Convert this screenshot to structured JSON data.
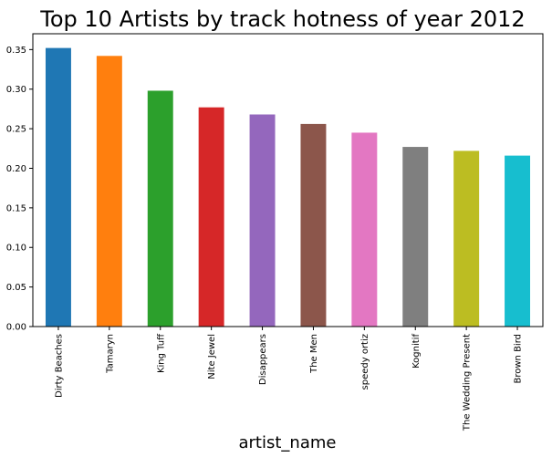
{
  "chart_data": {
    "type": "bar",
    "title": "Top 10 Artists by track hotness of year 2012",
    "xlabel": "artist_name",
    "ylabel": "",
    "ylim": [
      0,
      0.37
    ],
    "yticks": [
      "0.00",
      "0.05",
      "0.10",
      "0.15",
      "0.20",
      "0.25",
      "0.30",
      "0.35"
    ],
    "grid": false,
    "legend": "none",
    "categories": [
      "Dirty Beaches",
      "Tamaryn",
      "King Tuff",
      "Nite Jewel",
      "Disappears",
      "The Men",
      "speedy ortiz",
      "Kognitif",
      "The Wedding Present",
      "Brown Bird"
    ],
    "values": [
      0.352,
      0.342,
      0.298,
      0.277,
      0.268,
      0.256,
      0.245,
      0.227,
      0.222,
      0.216
    ],
    "colors": [
      "#1f77b4",
      "#ff7f0e",
      "#2ca02c",
      "#d62728",
      "#9467bd",
      "#8c564b",
      "#e377c2",
      "#7f7f7f",
      "#bcbd22",
      "#17becf"
    ]
  }
}
